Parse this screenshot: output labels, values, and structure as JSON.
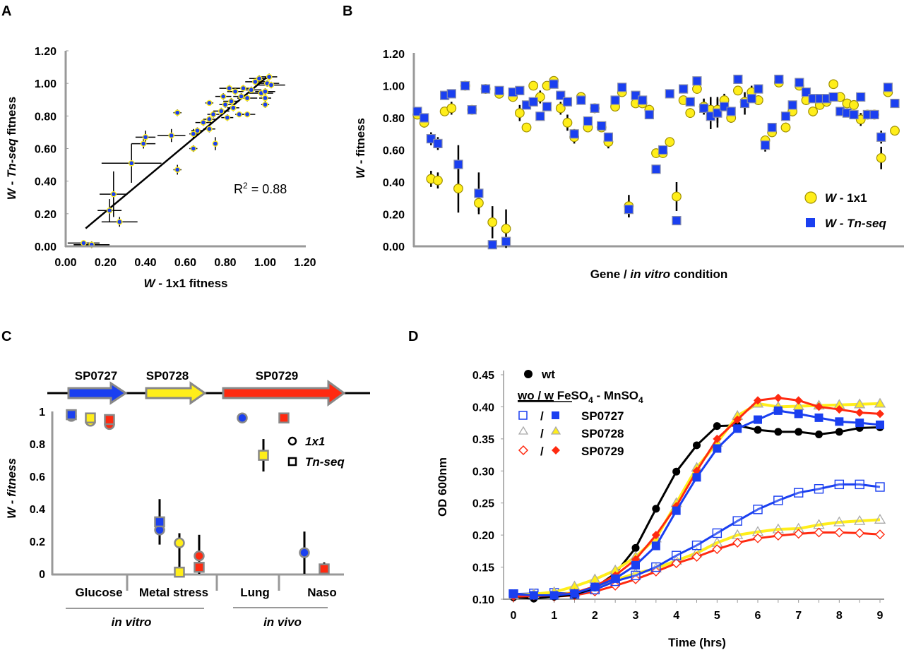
{
  "colors": {
    "blue": "#1a3ff0",
    "yellow": "#ffee1a",
    "red": "#ff2a10",
    "black": "#000000",
    "axis": "#999999",
    "marker_edge": "#888888",
    "yellow_edge": "#b8a000"
  },
  "chart_data": [
    {
      "panel": "A",
      "type": "scatter",
      "xlabel_italic": "W",
      "xlabel_rest": " - 1x1 fitness",
      "ylabel_italic_w": "W",
      "ylabel_mid": " - ",
      "ylabel_italic_tn": "Tn-seq",
      "ylabel_rest": " fitness",
      "xlim": [
        0,
        1.2
      ],
      "ylim": [
        0,
        1.2
      ],
      "xticks": [
        "0.00",
        "0.20",
        "0.40",
        "0.60",
        "0.80",
        "1.00",
        "1.20"
      ],
      "yticks": [
        "0.00",
        "0.20",
        "0.40",
        "0.60",
        "0.80",
        "1.00",
        "1.20"
      ],
      "annotation_r": "R",
      "annotation_sup": "2",
      "annotation_val": " = 0.88",
      "fit_line": {
        "x0": 0.1,
        "y0": 0.11,
        "x1": 1.01,
        "y1": 1.04
      },
      "points": [
        {
          "x": 0.09,
          "y": 0.02,
          "xe": 0.08,
          "ye": 0.0
        },
        {
          "x": 0.13,
          "y": 0.01,
          "xe": 0.09,
          "ye": 0.02
        },
        {
          "x": 0.22,
          "y": 0.22,
          "xe": 0.06,
          "ye": 0.07
        },
        {
          "x": 0.24,
          "y": 0.32,
          "xe": 0.07,
          "ye": 0.14
        },
        {
          "x": 0.27,
          "y": 0.15,
          "xe": 0.09,
          "ye": 0.03
        },
        {
          "x": 0.33,
          "y": 0.51,
          "xe": 0.15,
          "ye": 0.12
        },
        {
          "x": 0.39,
          "y": 0.63,
          "xe": 0.06,
          "ye": 0.03
        },
        {
          "x": 0.4,
          "y": 0.67,
          "xe": 0.05,
          "ye": 0.04
        },
        {
          "x": 0.53,
          "y": 0.68,
          "xe": 0.07,
          "ye": 0.04
        },
        {
          "x": 0.56,
          "y": 0.82,
          "xe": 0.02,
          "ye": 0.02
        },
        {
          "x": 0.56,
          "y": 0.47,
          "xe": 0.02,
          "ye": 0.03
        },
        {
          "x": 0.64,
          "y": 0.69,
          "xe": 0.02,
          "ye": 0.03
        },
        {
          "x": 0.64,
          "y": 0.6,
          "xe": 0.02,
          "ye": 0.02
        },
        {
          "x": 0.66,
          "y": 0.71,
          "xe": 0.03,
          "ye": 0.02
        },
        {
          "x": 0.69,
          "y": 0.76,
          "xe": 0.04,
          "ye": 0.02
        },
        {
          "x": 0.72,
          "y": 0.78,
          "xe": 0.03,
          "ye": 0.02
        },
        {
          "x": 0.72,
          "y": 0.72,
          "xe": 0.03,
          "ye": 0.02
        },
        {
          "x": 0.72,
          "y": 0.88,
          "xe": 0.02,
          "ye": 0.01
        },
        {
          "x": 0.74,
          "y": 0.81,
          "xe": 0.03,
          "ye": 0.02
        },
        {
          "x": 0.75,
          "y": 0.63,
          "xe": 0.01,
          "ye": 0.04
        },
        {
          "x": 0.78,
          "y": 0.83,
          "xe": 0.04,
          "ye": 0.02
        },
        {
          "x": 0.79,
          "y": 0.92,
          "xe": 0.04,
          "ye": 0.02
        },
        {
          "x": 0.8,
          "y": 0.87,
          "xe": 0.03,
          "ye": 0.02
        },
        {
          "x": 0.81,
          "y": 0.79,
          "xe": 0.03,
          "ye": 0.02
        },
        {
          "x": 0.82,
          "y": 0.97,
          "xe": 0.05,
          "ye": 0.02
        },
        {
          "x": 0.83,
          "y": 0.89,
          "xe": 0.04,
          "ye": 0.02
        },
        {
          "x": 0.84,
          "y": 0.85,
          "xe": 0.03,
          "ye": 0.02
        },
        {
          "x": 0.85,
          "y": 0.95,
          "xe": 0.04,
          "ye": 0.02
        },
        {
          "x": 0.87,
          "y": 0.81,
          "xe": 0.02,
          "ye": 0.01
        },
        {
          "x": 0.88,
          "y": 0.92,
          "xe": 0.04,
          "ye": 0.02
        },
        {
          "x": 0.89,
          "y": 0.97,
          "xe": 0.05,
          "ye": 0.02
        },
        {
          "x": 0.91,
          "y": 0.81,
          "xe": 0.04,
          "ye": 0.01
        },
        {
          "x": 0.91,
          "y": 0.91,
          "xe": 0.05,
          "ye": 0.02
        },
        {
          "x": 0.93,
          "y": 0.96,
          "xe": 0.05,
          "ye": 0.02
        },
        {
          "x": 0.95,
          "y": 1.01,
          "xe": 0.05,
          "ye": 0.02
        },
        {
          "x": 0.97,
          "y": 1.03,
          "xe": 0.05,
          "ye": 0.02
        },
        {
          "x": 0.98,
          "y": 0.94,
          "xe": 0.06,
          "ye": 0.02
        },
        {
          "x": 1.0,
          "y": 0.87,
          "xe": 0.02,
          "ye": 0.02
        },
        {
          "x": 1.0,
          "y": 0.91,
          "xe": 0.03,
          "ye": 0.02
        },
        {
          "x": 1.0,
          "y": 0.95,
          "xe": 0.05,
          "ye": 0.02
        },
        {
          "x": 1.01,
          "y": 1.0,
          "xe": 0.06,
          "ye": 0.02
        },
        {
          "x": 1.02,
          "y": 1.04,
          "xe": 0.04,
          "ye": 0.02
        },
        {
          "x": 1.03,
          "y": 0.99,
          "xe": 0.07,
          "ye": 0.02
        }
      ]
    },
    {
      "panel": "B",
      "type": "scatter",
      "xlabel_pre": "Gene / ",
      "xlabel_italic": "in vitro",
      "xlabel_post": " condition",
      "ylabel_italic": "W",
      "ylabel_rest": " - fitness",
      "ylim": [
        0,
        1.2
      ],
      "yticks": [
        "0.00",
        "0.20",
        "0.40",
        "0.60",
        "0.80",
        "1.00",
        "1.20"
      ],
      "legend": [
        {
          "italic": "W",
          "rest": " - 1x1",
          "marker": "circle"
        },
        {
          "italic": "W",
          "rest": " - Tn-seq",
          "marker": "square"
        }
      ],
      "legend_position": "bottom-right",
      "series": [
        {
          "name": "W - 1x1",
          "values": [
            0.82,
            0.77,
            0.42,
            0.41,
            0.84,
            0.86,
            0.36,
            1.0,
            0.85,
            0.27,
            0.98,
            0.15,
            0.95,
            0.11,
            0.93,
            0.83,
            0.74,
            1.0,
            0.93,
            1.0,
            1.03,
            0.86,
            0.77,
            0.68,
            0.93,
            0.74,
            0.86,
            0.74,
            0.65,
            0.87,
            0.96,
            0.25,
            0.89,
            0.89,
            0.85,
            0.58,
            0.58,
            0.65,
            0.31,
            0.91,
            0.83,
            0.98,
            0.87,
            0.85,
            0.85,
            0.91,
            0.8,
            0.97,
            0.9,
            0.96,
            0.91,
            0.66,
            0.71,
            1.02,
            0.74,
            0.84,
            1.0,
            0.91,
            0.84,
            0.88,
            0.9,
            1.01,
            0.93,
            0.89,
            0.88,
            0.79,
            0.82,
            0.82,
            0.55,
            0.96,
            0.72
          ]
        },
        {
          "name": "W - Tn-seq",
          "values": [
            0.84,
            0.8,
            0.67,
            0.64,
            0.94,
            0.95,
            0.51,
            1.0,
            0.85,
            0.33,
            0.98,
            0.01,
            0.97,
            0.03,
            0.96,
            0.97,
            0.88,
            0.9,
            0.81,
            0.87,
            1.01,
            0.94,
            0.9,
            0.7,
            0.91,
            0.78,
            0.86,
            0.75,
            0.68,
            0.91,
            0.99,
            0.23,
            0.94,
            0.91,
            0.82,
            0.48,
            0.6,
            0.95,
            0.16,
            0.98,
            0.9,
            1.03,
            0.86,
            0.81,
            0.83,
            0.87,
            0.84,
            1.04,
            0.89,
            0.92,
            0.98,
            0.63,
            0.74,
            1.04,
            0.81,
            0.88,
            1.02,
            0.96,
            0.92,
            0.92,
            0.92,
            0.93,
            0.84,
            0.83,
            0.82,
            0.93,
            0.82,
            0.82,
            0.68,
            0.99,
            0.89
          ]
        }
      ],
      "error_1x1": [
        0.02,
        0.03,
        0.05,
        0.05,
        0.0,
        0.04,
        0.15,
        0.0,
        0.0,
        0.05,
        0.0,
        0.1,
        0.0,
        0.12,
        0.0,
        0.05,
        0.0,
        0.0,
        0.04,
        0.0,
        0.02,
        0.04,
        0.05,
        0.04,
        0.03,
        0.0,
        0.03,
        0.02,
        0.04,
        0.0,
        0.02,
        0.07,
        0.0,
        0.0,
        0.03,
        0.0,
        0.0,
        0.0,
        0.09,
        0.0,
        0.03,
        0.0,
        0.05,
        0.08,
        0.08,
        0.04,
        0.03,
        0.0,
        0.0,
        0.04,
        0.03,
        0.03,
        0.0,
        0.0,
        0.03,
        0.03,
        0.0,
        0.03,
        0.03,
        0.0,
        0.0,
        0.0,
        0.0,
        0.0,
        0.0,
        0.04,
        0.0,
        0.0,
        0.07,
        0.02,
        0.03
      ],
      "error_tnseq": [
        0.0,
        0.0,
        0.04,
        0.04,
        0.0,
        0.0,
        0.12,
        0.0,
        0.0,
        0.13,
        0.0,
        0.02,
        0.0,
        0.02,
        0.0,
        0.0,
        0.0,
        0.0,
        0.0,
        0.0,
        0.0,
        0.0,
        0.0,
        0.03,
        0.0,
        0.0,
        0.0,
        0.02,
        0.0,
        0.0,
        0.0,
        0.05,
        0.0,
        0.0,
        0.0,
        0.02,
        0.0,
        0.0,
        0.02,
        0.0,
        0.0,
        0.0,
        0.03,
        0.08,
        0.09,
        0.0,
        0.0,
        0.0,
        0.07,
        0.0,
        0.0,
        0.04,
        0.0,
        0.0,
        0.0,
        0.0,
        0.0,
        0.0,
        0.0,
        0.0,
        0.0,
        0.0,
        0.0,
        0.0,
        0.0,
        0.0,
        0.0,
        0.0,
        0.04,
        0.0,
        0.0
      ]
    },
    {
      "panel": "C",
      "type": "scatter",
      "ylabel_italic": "W - fitness",
      "ylim": [
        0,
        1
      ],
      "yticks": [
        "0",
        "0.2",
        "0.4",
        "0.6",
        "0.8",
        "1"
      ],
      "genes": [
        {
          "name": "SP0727",
          "color": "blue"
        },
        {
          "name": "SP0728",
          "color": "yellow"
        },
        {
          "name": "SP0729",
          "color": "red"
        }
      ],
      "categories": [
        "Glucose",
        "Metal stress",
        "Lung",
        "Naso"
      ],
      "groups": [
        {
          "label": "in vitro",
          "spans": [
            "Glucose",
            "Metal stress"
          ]
        },
        {
          "label": "in vivo",
          "spans": [
            "Lung",
            "Naso"
          ]
        }
      ],
      "legend": [
        {
          "label": "1x1",
          "marker": "circle"
        },
        {
          "label": "Tn-seq",
          "marker": "square"
        }
      ],
      "legend_position": "top-right",
      "points": [
        {
          "category": "Glucose",
          "gene": "SP0727",
          "one_x_one": 0.97,
          "tnseq": 0.98,
          "err1": 0,
          "err2": 0
        },
        {
          "category": "Glucose",
          "gene": "SP0728",
          "one_x_one": 0.94,
          "tnseq": 0.96,
          "err1": 0,
          "err2": 0
        },
        {
          "category": "Glucose",
          "gene": "SP0729",
          "one_x_one": 0.92,
          "tnseq": 0.95,
          "err1": 0,
          "err2": 0
        },
        {
          "category": "Metal stress",
          "gene": "SP0727",
          "one_x_one": 0.27,
          "tnseq": 0.32,
          "err1": 0.08,
          "err2": 0.14
        },
        {
          "category": "Metal stress",
          "gene": "SP0728",
          "one_x_one": 0.19,
          "tnseq": 0.01,
          "err1": 0.06,
          "err2": 0.17
        },
        {
          "category": "Metal stress",
          "gene": "SP0729",
          "one_x_one": 0.11,
          "tnseq": 0.04,
          "err1": 0.13,
          "err2": 0.02
        },
        {
          "category": "Lung",
          "gene": "SP0727",
          "one_x_one": 0.96,
          "tnseq": null,
          "err1": 0,
          "err2": 0
        },
        {
          "category": "Lung",
          "gene": "SP0728",
          "one_x_one": null,
          "tnseq": 0.73,
          "err1": 0,
          "err2": 0.1
        },
        {
          "category": "Lung",
          "gene": "SP0729",
          "one_x_one": null,
          "tnseq": 0.96,
          "err1": 0,
          "err2": 0.02
        },
        {
          "category": "Naso",
          "gene": "SP0727",
          "one_x_one": 0.13,
          "tnseq": null,
          "err1": 0.13,
          "err2": 0
        },
        {
          "category": "Naso",
          "gene": "SP0729",
          "one_x_one": null,
          "tnseq": 0.03,
          "err1": 0,
          "err2": 0.04
        }
      ]
    },
    {
      "panel": "D",
      "type": "line",
      "xlabel": "Time (hrs)",
      "ylabel": "OD 600nm",
      "xlim": [
        0,
        9
      ],
      "ylim": [
        0.1,
        0.45
      ],
      "xticks": [
        "0",
        "1",
        "2",
        "3",
        "4",
        "5",
        "6",
        "7",
        "8",
        "9"
      ],
      "yticks": [
        "0.10",
        "0.15",
        "0.20",
        "0.25",
        "0.30",
        "0.35",
        "0.40",
        "0.45"
      ],
      "x": [
        0,
        0.5,
        1,
        1.5,
        2,
        2.5,
        3,
        3.5,
        4,
        4.5,
        5,
        5.5,
        6,
        6.5,
        7,
        7.5,
        8,
        8.5,
        9
      ],
      "legend_wt": "wt",
      "legend_header_u": "wo / w",
      "legend_header_fe": " FeSO",
      "legend_header_sub1": "4",
      "legend_header_mn": " - MnSO",
      "legend_header_sub2": "4",
      "legend_slash": "/",
      "legend_position": "top-left",
      "series": [
        {
          "name": "wt",
          "color": "black",
          "marker": "circle-filled",
          "values": [
            0.103,
            0.101,
            0.104,
            0.107,
            0.118,
            0.14,
            0.18,
            0.241,
            0.299,
            0.34,
            0.37,
            0.371,
            0.364,
            0.361,
            0.361,
            0.357,
            0.361,
            0.367,
            0.368
          ]
        },
        {
          "name": "SP0727 wo",
          "color": "blue",
          "marker": "square-open",
          "values": [
            0.108,
            0.109,
            0.11,
            0.108,
            0.115,
            0.128,
            0.137,
            0.15,
            0.168,
            0.184,
            0.203,
            0.222,
            0.24,
            0.254,
            0.266,
            0.272,
            0.279,
            0.279,
            0.275
          ]
        },
        {
          "name": "SP0727 w",
          "color": "blue",
          "marker": "square-filled",
          "values": [
            0.108,
            0.106,
            0.106,
            0.109,
            0.119,
            0.132,
            0.153,
            0.183,
            0.238,
            0.29,
            0.335,
            0.366,
            0.38,
            0.394,
            0.389,
            0.383,
            0.377,
            0.375,
            0.372
          ]
        },
        {
          "name": "SP0728 wo",
          "color": "yellow",
          "marker": "triangle-open",
          "values": [
            0.106,
            0.107,
            0.108,
            0.11,
            0.118,
            0.13,
            0.14,
            0.148,
            0.16,
            0.172,
            0.188,
            0.2,
            0.205,
            0.209,
            0.21,
            0.216,
            0.22,
            0.222,
            0.224
          ]
        },
        {
          "name": "SP0728 w",
          "color": "yellow",
          "marker": "triangle-filled",
          "values": [
            0.106,
            0.108,
            0.111,
            0.12,
            0.131,
            0.145,
            0.166,
            0.195,
            0.25,
            0.305,
            0.344,
            0.386,
            0.405,
            0.4,
            0.401,
            0.402,
            0.403,
            0.404,
            0.405
          ]
        },
        {
          "name": "SP0729 wo",
          "color": "red",
          "marker": "diamond-open",
          "values": [
            0.103,
            0.104,
            0.104,
            0.106,
            0.112,
            0.121,
            0.131,
            0.143,
            0.156,
            0.166,
            0.178,
            0.188,
            0.195,
            0.199,
            0.202,
            0.204,
            0.204,
            0.203,
            0.201
          ]
        },
        {
          "name": "SP0729 w",
          "color": "red",
          "marker": "diamond-filled",
          "values": [
            0.104,
            0.105,
            0.106,
            0.11,
            0.12,
            0.137,
            0.162,
            0.2,
            0.245,
            0.3,
            0.35,
            0.38,
            0.41,
            0.414,
            0.41,
            0.4,
            0.396,
            0.391,
            0.389
          ]
        }
      ],
      "legend_entries": [
        "SP0727",
        "SP0728",
        "SP0729"
      ]
    }
  ],
  "panel_letters": [
    "A",
    "B",
    "C",
    "D"
  ]
}
